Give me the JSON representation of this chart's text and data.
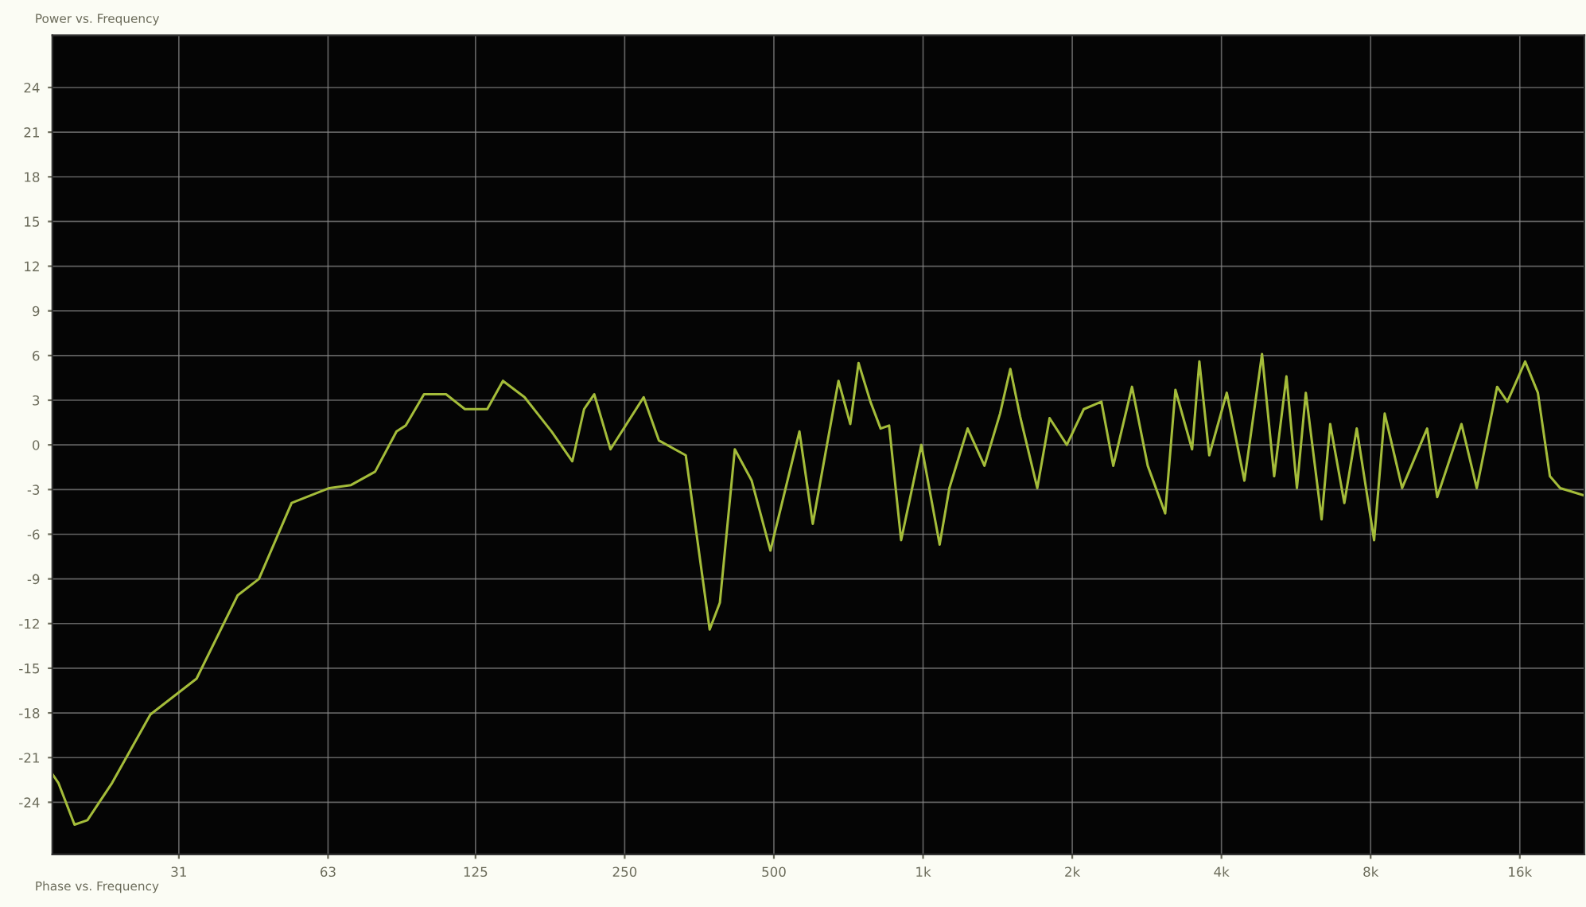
{
  "chart_data": {
    "type": "line",
    "title": "Power vs. Frequency",
    "annotations": [
      "Phase vs. Frequency"
    ],
    "x": [
      17.5,
      18.0,
      19.4,
      20.6,
      23.1,
      27.6,
      34.2,
      41.4,
      45.7,
      53.2,
      63.4,
      70.1,
      78.4,
      86.6,
      90.4,
      98.4,
      109,
      119,
      132,
      142,
      157,
      178,
      196,
      207,
      217,
      234,
      273,
      293,
      332,
      371,
      389,
      417,
      451,
      492,
      563,
      599,
      675,
      713,
      741,
      783,
      821,
      854,
      903,
      992,
      1080,
      1130,
      1230,
      1330,
      1430,
      1500,
      1570,
      1700,
      1800,
      1950,
      2110,
      2290,
      2420,
      2640,
      2840,
      3080,
      3230,
      3490,
      3610,
      3780,
      4100,
      4450,
      4830,
      5110,
      5410,
      5680,
      5920,
      6370,
      6630,
      7080,
      7500,
      8130,
      8540,
      9260,
      10400,
      10900,
      12200,
      13100,
      14400,
      15100,
      16400,
      17400,
      18400,
      19300,
      21600
    ],
    "series": [
      {
        "color": "#a4bc3a",
        "values": [
          -22.1,
          -22.7,
          -25.5,
          -25.2,
          -22.7,
          -18.1,
          -15.7,
          -10.1,
          -9.0,
          -3.9,
          -2.9,
          -2.7,
          -1.8,
          0.9,
          1.3,
          3.4,
          3.4,
          2.4,
          2.4,
          4.3,
          3.2,
          0.9,
          -1.1,
          2.4,
          3.4,
          -0.3,
          3.2,
          0.3,
          -0.7,
          -12.4,
          -10.6,
          -0.3,
          -2.4,
          -7.1,
          0.9,
          -5.3,
          4.3,
          1.4,
          5.5,
          2.9,
          1.1,
          1.3,
          -6.4,
          0.0,
          -6.7,
          -2.9,
          1.1,
          -1.4,
          2.1,
          5.1,
          1.9,
          -2.9,
          1.8,
          0.0,
          2.4,
          2.9,
          -1.4,
          3.9,
          -1.4,
          -4.6,
          3.7,
          -0.3,
          5.6,
          -0.7,
          3.5,
          -2.4,
          6.1,
          -2.1,
          4.6,
          -2.9,
          3.5,
          -5.0,
          1.4,
          -3.9,
          1.1,
          -6.4,
          2.1,
          -2.9,
          1.1,
          -3.5,
          1.4,
          -2.9,
          3.9,
          2.9,
          5.6,
          3.5,
          -2.1,
          -2.9,
          -3.4
        ]
      }
    ],
    "log": "x",
    "xlim": [
      17.5,
      21600
    ],
    "xticks": [
      {
        "value": 31.5,
        "label": "31"
      },
      63,
      125,
      250,
      500,
      {
        "value": 1000,
        "label": "1k"
      },
      {
        "value": 2000,
        "label": "2k"
      },
      {
        "value": 4000,
        "label": "4k"
      },
      {
        "value": 8000,
        "label": "8k"
      },
      {
        "value": 16000,
        "label": "16k"
      }
    ],
    "ylim": [
      -27.5,
      27.5
    ],
    "yticks": [
      -24,
      -21,
      -18,
      -15,
      -12,
      -9,
      -6,
      -3,
      0,
      3,
      6,
      9,
      12,
      15,
      18,
      21,
      24
    ],
    "grid": true,
    "legend": false
  }
}
